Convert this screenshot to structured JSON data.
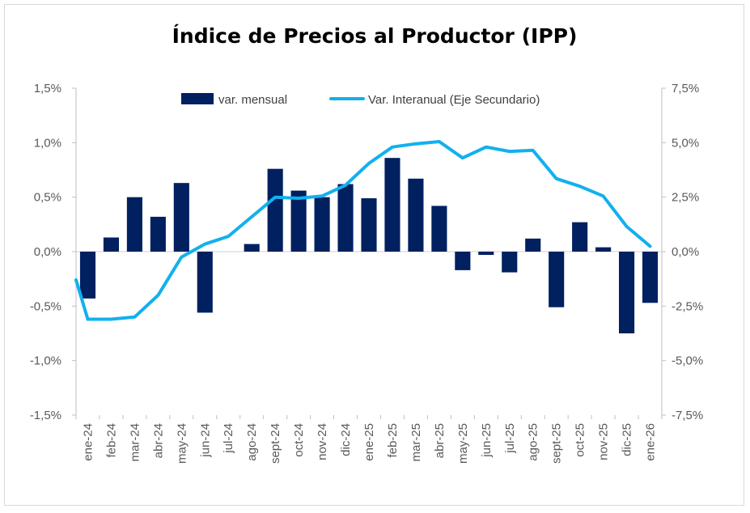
{
  "chart_data": {
    "type": "bar",
    "title": "Índice de Precios al Productor (IPP)",
    "categories": [
      "ene-24",
      "feb-24",
      "mar-24",
      "abr-24",
      "may-24",
      "jun-24",
      "jul-24",
      "ago-24",
      "sept-24",
      "oct-24",
      "nov-24",
      "dic-24",
      "ene-25",
      "feb-25",
      "mar-25",
      "abr-25",
      "may-25",
      "jun-25",
      "jul-25",
      "ago-25",
      "sept-25",
      "oct-25",
      "nov-25",
      "dic-25",
      "ene-26"
    ],
    "series": [
      {
        "name": "var. mensual",
        "type": "bar",
        "axis": "primary",
        "color": "#002060",
        "values": [
          -0.43,
          0.13,
          0.5,
          0.32,
          0.63,
          -0.56,
          0.0,
          0.07,
          0.76,
          0.56,
          0.5,
          0.62,
          0.49,
          0.86,
          0.67,
          0.42,
          -0.17,
          -0.03,
          -0.19,
          0.12,
          -0.51,
          0.27,
          0.04,
          -0.75,
          -0.47
        ]
      },
      {
        "name": "Var. Interanual (Eje Secundario)",
        "type": "line",
        "axis": "secondary",
        "color": "#12B0EE",
        "values": [
          -3.1,
          -3.1,
          -3.0,
          -2.0,
          -0.25,
          0.35,
          0.7,
          1.6,
          2.5,
          2.45,
          2.55,
          3.05,
          4.05,
          4.8,
          4.95,
          5.05,
          4.3,
          4.8,
          4.6,
          4.65,
          3.35,
          3.0,
          2.55,
          1.15,
          0.25
        ]
      }
    ],
    "primary_axis": {
      "ylim": [
        -1.5,
        1.5
      ],
      "ticks": [
        "-1,5%",
        "-1,0%",
        "-0,5%",
        "0,0%",
        "0,5%",
        "1,0%",
        "1,5%"
      ]
    },
    "secondary_axis": {
      "ylim": [
        -7.5,
        7.5
      ],
      "ticks": [
        "-7,5%",
        "-5,0%",
        "-2,5%",
        "0,0%",
        "2,5%",
        "5,0%",
        "7,5%"
      ]
    },
    "legend": [
      "var. mensual",
      "Var. Interanual (Eje Secundario)"
    ],
    "legend_position": "top-center",
    "grid": false
  }
}
